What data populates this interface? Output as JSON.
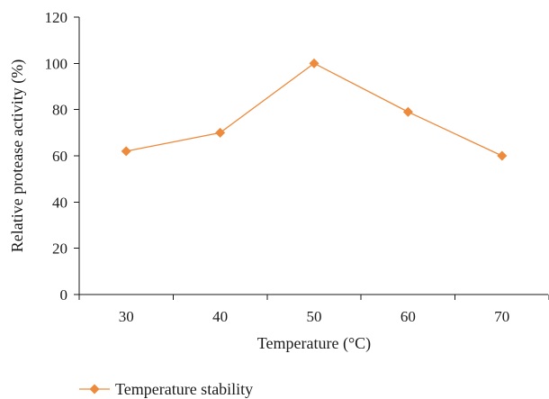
{
  "chart_data": {
    "type": "line",
    "x": [
      30,
      40,
      50,
      60,
      70
    ],
    "categories": [
      "30",
      "40",
      "50",
      "60",
      "70"
    ],
    "series": [
      {
        "name": "Temperature stability",
        "values": [
          62,
          70,
          100,
          79,
          60
        ],
        "color": "#ee8a3c",
        "marker": "diamond"
      }
    ],
    "xlabel": "Temperature (°C)",
    "ylabel": "Relative protease activity (%)",
    "ylim": [
      0,
      120
    ],
    "yticks": [
      "0",
      "20",
      "40",
      "60",
      "80",
      "100",
      "120"
    ],
    "grid": false,
    "legend": "bottom-left"
  }
}
